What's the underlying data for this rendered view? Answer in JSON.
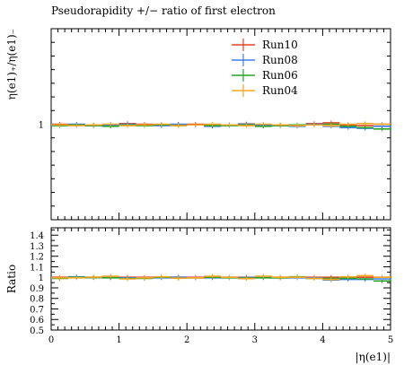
{
  "chart_data": {
    "type": "line",
    "title": "Pseudorapidity +/− ratio of first electron",
    "main_panel": {
      "ylabel": "η(e1)₊/η(e1)₋",
      "ylim": [
        0.3,
        1.7
      ],
      "yticks": [
        {
          "value": 1,
          "label": "1"
        }
      ]
    },
    "ratio_panel": {
      "ylabel": "Ratio",
      "ylim": [
        0.5,
        1.47
      ],
      "yticks": [
        {
          "value": 0.5,
          "label": "0.5"
        },
        {
          "value": 0.6,
          "label": "0.6"
        },
        {
          "value": 0.7,
          "label": "0.7"
        },
        {
          "value": 0.8,
          "label": "0.8"
        },
        {
          "value": 0.9,
          "label": "0.9"
        },
        {
          "value": 1.0,
          "label": "1"
        },
        {
          "value": 1.1,
          "label": "1.1"
        },
        {
          "value": 1.2,
          "label": "1.2"
        },
        {
          "value": 1.3,
          "label": "1.3"
        },
        {
          "value": 1.4,
          "label": "1.4"
        }
      ]
    },
    "xlabel": "|η(e1)|",
    "xlim": [
      0,
      5
    ],
    "xticks": [
      {
        "value": 0,
        "label": "0"
      },
      {
        "value": 1,
        "label": "1"
      },
      {
        "value": 2,
        "label": "2"
      },
      {
        "value": 3,
        "label": "3"
      },
      {
        "value": 4,
        "label": "4"
      },
      {
        "value": 5,
        "label": "5"
      }
    ],
    "bin_edges": [
      0,
      0.25,
      0.5,
      0.75,
      1.0,
      1.25,
      1.5,
      1.75,
      2.0,
      2.25,
      2.5,
      2.75,
      3.0,
      3.25,
      3.5,
      3.75,
      4.0,
      4.25,
      4.5,
      4.75,
      5.0
    ],
    "legend_position": "top-right",
    "series": [
      {
        "name": "Run10",
        "color": "#e8402a",
        "values": [
          1.0,
          0.995,
          0.993,
          0.99,
          1.005,
          1.0,
          0.995,
          0.998,
          1.0,
          0.99,
          0.995,
          1.002,
          0.99,
          0.995,
          0.99,
          1.005,
          1.01,
          0.995,
          0.99,
          1.0
        ],
        "ratio": [
          1.0,
          1.0,
          1.0,
          1.0,
          1.0,
          1.0,
          1.0,
          1.0,
          1.0,
          1.0,
          1.0,
          1.0,
          1.0,
          1.0,
          1.0,
          1.0,
          1.0,
          1.0,
          1.0,
          1.0
        ]
      },
      {
        "name": "Run08",
        "color": "#3c7ef0",
        "values": [
          0.995,
          1.0,
          0.99,
          0.995,
          1.0,
          0.995,
          0.99,
          1.0,
          0.995,
          0.985,
          0.995,
          1.0,
          0.995,
          0.99,
          0.985,
          1.0,
          0.985,
          0.975,
          0.97,
          0.985
        ],
        "ratio": [
          0.995,
          1.005,
          0.997,
          1.005,
          0.995,
          0.995,
          0.995,
          1.002,
          0.995,
          0.995,
          1.0,
          0.998,
          1.005,
          0.995,
          0.995,
          0.995,
          0.975,
          0.98,
          0.98,
          0.985
        ]
      },
      {
        "name": "Run06",
        "color": "#2aa02a",
        "values": [
          0.99,
          0.995,
          0.99,
          0.985,
          0.995,
          0.99,
          0.995,
          0.99,
          0.995,
          0.99,
          0.99,
          0.995,
          0.985,
          0.99,
          0.995,
          0.995,
          1.0,
          0.985,
          0.975,
          0.965
        ],
        "ratio": [
          0.99,
          1.0,
          0.997,
          0.995,
          0.99,
          0.99,
          1.0,
          0.992,
          0.995,
          1.0,
          0.995,
          0.993,
          0.995,
          0.995,
          1.005,
          0.99,
          0.99,
          0.99,
          0.985,
          0.965
        ]
      },
      {
        "name": "Run04",
        "color": "#f5a623",
        "values": [
          0.995,
          0.99,
          0.995,
          1.0,
          0.99,
          0.995,
          1.0,
          0.99,
          0.995,
          1.0,
          0.995,
          0.99,
          1.0,
          0.995,
          0.99,
          0.995,
          0.99,
          1.0,
          1.005,
          1.0
        ],
        "ratio": [
          0.995,
          0.995,
          1.002,
          1.01,
          0.985,
          0.995,
          1.005,
          0.992,
          0.995,
          1.01,
          1.0,
          0.988,
          1.01,
          1.0,
          1.0,
          0.99,
          0.98,
          1.005,
          1.015,
          1.0
        ]
      }
    ]
  }
}
